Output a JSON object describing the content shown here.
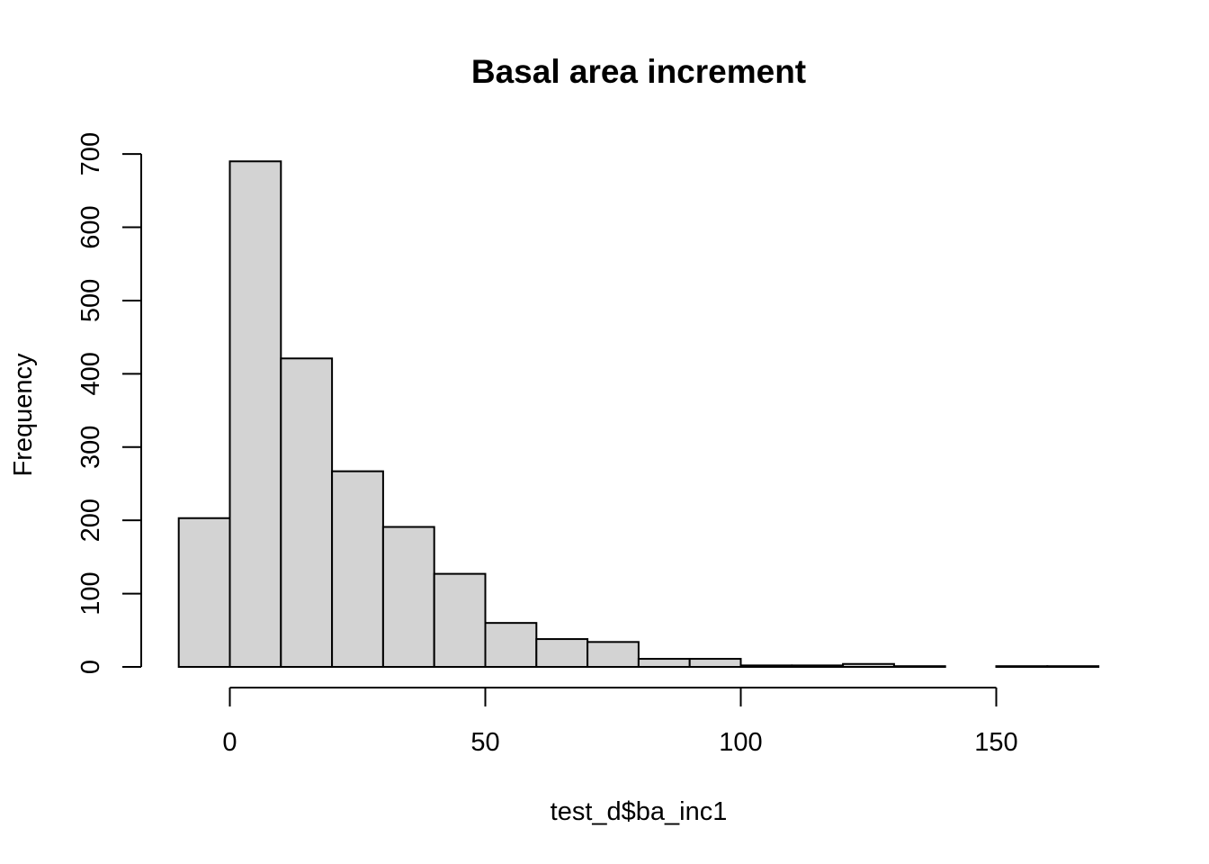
{
  "chart_data": {
    "type": "bar",
    "title": "Basal area increment",
    "xlabel": "test_d$ba_inc1",
    "ylabel": "Frequency",
    "bin_edges": [
      -10,
      0,
      10,
      20,
      30,
      40,
      50,
      60,
      70,
      80,
      90,
      100,
      110,
      120,
      130,
      140,
      150,
      160,
      170
    ],
    "values": [
      203,
      690,
      421,
      267,
      191,
      127,
      60,
      38,
      34,
      11,
      11,
      2,
      2,
      4,
      1,
      0,
      1,
      1
    ],
    "xlim": [
      -10,
      170
    ],
    "ylim": [
      0,
      700
    ],
    "x_ticks": [
      0,
      50,
      100,
      150
    ],
    "x_tick_labels": [
      "0",
      "50",
      "100",
      "150"
    ],
    "y_ticks": [
      0,
      100,
      200,
      300,
      400,
      500,
      600,
      700
    ],
    "y_tick_labels": [
      "0",
      "100",
      "200",
      "300",
      "400",
      "500",
      "600",
      "700"
    ],
    "grid": false,
    "colors": {
      "bar_fill": "#d3d3d3",
      "bar_stroke": "#000000"
    }
  }
}
